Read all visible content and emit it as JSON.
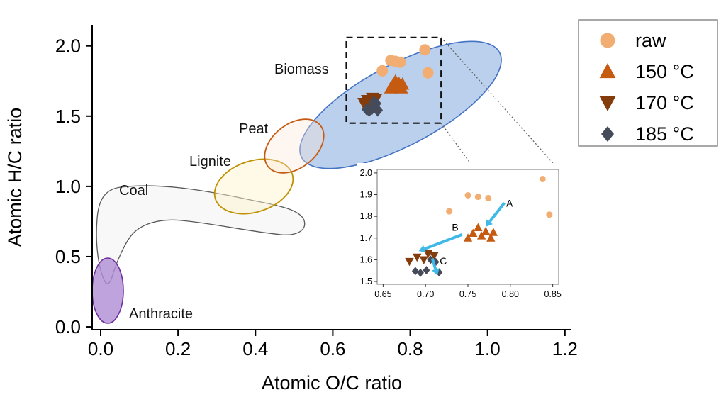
{
  "chart_data": {
    "type": "scatter",
    "title": "",
    "xlabel": "Atomic O/C ratio",
    "ylabel": "Atomic H/C ratio",
    "xlim": [
      0,
      1.2
    ],
    "ylim": [
      0,
      2.15
    ],
    "grid": false,
    "xticks": [
      {
        "value": 0.0,
        "label": "0.0"
      },
      {
        "value": 0.2,
        "label": "0.2"
      },
      {
        "value": 0.4,
        "label": "0.4"
      },
      {
        "value": 0.6,
        "label": "0.6"
      },
      {
        "value": 0.8,
        "label": "0.8"
      },
      {
        "value": 1.0,
        "label": "1.0"
      },
      {
        "value": 1.2,
        "label": "1.2"
      }
    ],
    "yticks": [
      {
        "value": 0.0,
        "label": "0.0"
      },
      {
        "value": 0.5,
        "label": "0.5"
      },
      {
        "value": 1.0,
        "label": "1.0"
      },
      {
        "value": 1.5,
        "label": "1.5"
      },
      {
        "value": 2.0,
        "label": "2.0"
      }
    ],
    "regions": [
      {
        "name": "coal",
        "label": "Coal",
        "outline": "#595959",
        "fill": "#F2F2F2"
      },
      {
        "name": "anthracite",
        "label": "Anthracite",
        "outline": "#7030A0",
        "fill": "#AE8CD5"
      },
      {
        "name": "lignite",
        "label": "Lignite",
        "outline": "#BF9000",
        "fill": "#FFF2CC"
      },
      {
        "name": "peat",
        "label": "Peat",
        "outline": "#C55A11",
        "fill": "#FBE5D6"
      },
      {
        "name": "biomass",
        "label": "Biomass",
        "outline": "#4472C4",
        "fill": "#A9C4E8"
      }
    ],
    "series": [
      {
        "name": "raw",
        "marker": "circle",
        "color": "#F2AE72",
        "points": [
          [
            0.728,
            1.823
          ],
          [
            0.75,
            1.897
          ],
          [
            0.762,
            1.89
          ],
          [
            0.774,
            1.884
          ],
          [
            0.838,
            1.972
          ],
          [
            0.846,
            1.808
          ]
        ]
      },
      {
        "name": "150 °C",
        "marker": "triangle-up",
        "color": "#C55A11",
        "points": [
          [
            0.75,
            1.7
          ],
          [
            0.756,
            1.722
          ],
          [
            0.762,
            1.748
          ],
          [
            0.766,
            1.71
          ],
          [
            0.771,
            1.731
          ],
          [
            0.777,
            1.7
          ],
          [
            0.78,
            1.726
          ]
        ]
      },
      {
        "name": "170 °C",
        "marker": "triangle-down",
        "color": "#843C0C",
        "points": [
          [
            0.681,
            1.592
          ],
          [
            0.69,
            1.612
          ],
          [
            0.698,
            1.6
          ],
          [
            0.703,
            1.628
          ],
          [
            0.71,
            1.618
          ]
        ]
      },
      {
        "name": "185 °C",
        "marker": "diamond",
        "color": "#464B59",
        "points": [
          [
            0.688,
            1.548
          ],
          [
            0.694,
            1.54
          ],
          [
            0.701,
            1.552
          ],
          [
            0.706,
            1.6
          ],
          [
            0.712,
            1.59
          ],
          [
            0.716,
            1.542
          ]
        ]
      }
    ],
    "zoom_box": {
      "x0": 0.635,
      "x1": 0.88,
      "y0": 1.45,
      "y1": 2.06
    },
    "inset": {
      "xlim": [
        0.65,
        0.85
      ],
      "ylim": [
        1.5,
        2.0
      ],
      "xticks": [
        {
          "value": 0.65,
          "label": "0.65"
        },
        {
          "value": 0.7,
          "label": "0.70"
        },
        {
          "value": 0.75,
          "label": "0.75"
        },
        {
          "value": 0.8,
          "label": "0.80"
        },
        {
          "value": 0.85,
          "label": "0.85"
        }
      ],
      "yticks": [
        {
          "value": 1.5,
          "label": "1.5"
        },
        {
          "value": 1.6,
          "label": "1.6"
        },
        {
          "value": 1.7,
          "label": "1.7"
        },
        {
          "value": 1.8,
          "label": "1.8"
        },
        {
          "value": 1.9,
          "label": "1.9"
        },
        {
          "value": 2.0,
          "label": "2.0"
        }
      ],
      "arrow_color": "#3FB9E8",
      "annotations": [
        {
          "label": "A",
          "from": [
            0.793,
            1.862
          ],
          "to": [
            0.771,
            1.752
          ],
          "label_pos": [
            0.799,
            1.845
          ]
        },
        {
          "label": "B",
          "from": [
            0.743,
            1.716
          ],
          "to": [
            0.692,
            1.64
          ],
          "label_pos": [
            0.735,
            1.733
          ]
        },
        {
          "label": "C",
          "from": [
            0.708,
            1.606
          ],
          "to": [
            0.714,
            1.528
          ],
          "label_pos": [
            0.721,
            1.578
          ]
        }
      ]
    },
    "legend": {
      "position": "top-right",
      "items": [
        "raw",
        "150 °C",
        "170 °C",
        "185 °C"
      ]
    }
  }
}
